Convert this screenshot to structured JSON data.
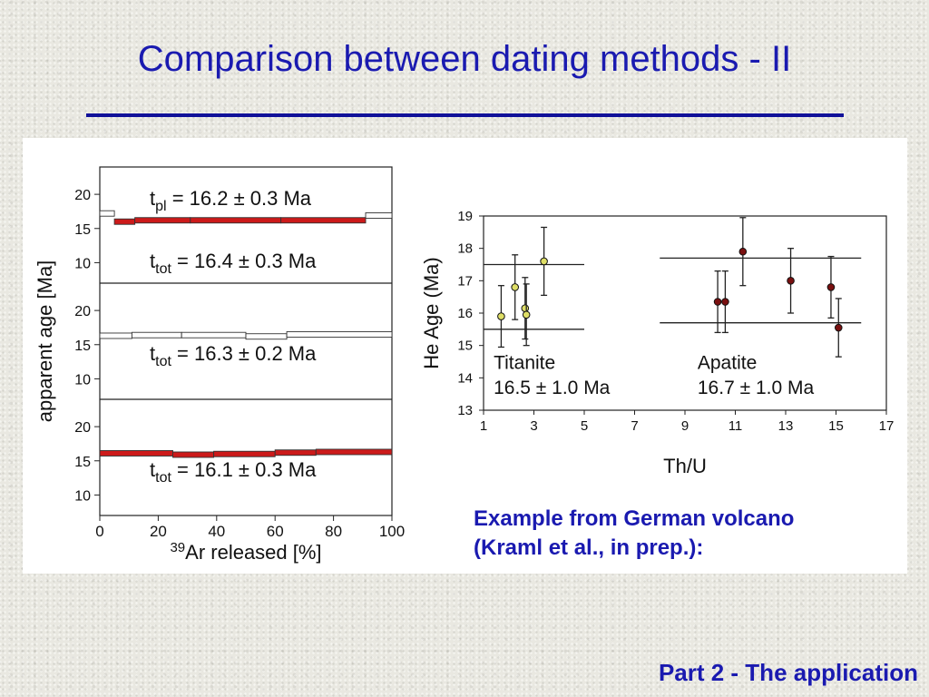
{
  "slide": {
    "title": "Comparison between dating methods - II",
    "caption_line1": "Example from German volcano",
    "caption_line2": "(Kraml et al., in prep.):",
    "footer": "Part 2 - The application"
  },
  "chart_data": [
    {
      "type": "bar",
      "title": "",
      "xlabel_sup": "39",
      "xlabel_main": "Ar released [%]",
      "ylabel": "apparent age [Ma]",
      "xlim": [
        0,
        100
      ],
      "x_ticks": [
        "0",
        "20",
        "40",
        "60",
        "80",
        "100"
      ],
      "panels": [
        {
          "ylim": [
            7,
            24
          ],
          "y_ticks": [
            "10",
            "15",
            "20"
          ],
          "annotations": [
            {
              "t": "t",
              "sub": "pl",
              "rest": " = 16.2 ± 0.3 Ma"
            },
            {
              "t": "t",
              "sub": "tot",
              "rest": " = 16.4 ± 0.3 Ma"
            }
          ],
          "steps": [
            {
              "x0": 0,
              "x1": 5,
              "age": 17.2,
              "filled": false
            },
            {
              "x0": 5,
              "x1": 12,
              "age": 16.0,
              "filled": true
            },
            {
              "x0": 12,
              "x1": 31,
              "age": 16.2,
              "filled": true
            },
            {
              "x0": 31,
              "x1": 62,
              "age": 16.2,
              "filled": true
            },
            {
              "x0": 62,
              "x1": 91,
              "age": 16.2,
              "filled": true
            },
            {
              "x0": 91,
              "x1": 100,
              "age": 16.9,
              "filled": false
            }
          ]
        },
        {
          "ylim": [
            7,
            24
          ],
          "y_ticks": [
            "10",
            "15",
            "20"
          ],
          "annotations": [
            {
              "t": "t",
              "sub": "tot",
              "rest": " = 16.3 ± 0.2 Ma"
            }
          ],
          "steps": [
            {
              "x0": 0,
              "x1": 11,
              "age": 16.3,
              "filled": false
            },
            {
              "x0": 11,
              "x1": 28,
              "age": 16.4,
              "filled": false
            },
            {
              "x0": 28,
              "x1": 50,
              "age": 16.4,
              "filled": false
            },
            {
              "x0": 50,
              "x1": 64,
              "age": 16.2,
              "filled": false
            },
            {
              "x0": 64,
              "x1": 100,
              "age": 16.5,
              "filled": false
            }
          ]
        },
        {
          "ylim": [
            7,
            24
          ],
          "y_ticks": [
            "10",
            "15",
            "20"
          ],
          "annotations": [
            {
              "t": "t",
              "sub": "tot",
              "rest": " = 16.1 ± 0.3 Ma"
            }
          ],
          "steps": [
            {
              "x0": 0,
              "x1": 25,
              "age": 16.1,
              "filled": true
            },
            {
              "x0": 25,
              "x1": 39,
              "age": 15.9,
              "filled": true
            },
            {
              "x0": 39,
              "x1": 60,
              "age": 16.0,
              "filled": true
            },
            {
              "x0": 60,
              "x1": 74,
              "age": 16.2,
              "filled": true
            },
            {
              "x0": 74,
              "x1": 100,
              "age": 16.3,
              "filled": true
            }
          ]
        }
      ]
    },
    {
      "type": "scatter",
      "title": "",
      "xlabel": "Th/U",
      "ylabel": "He Age (Ma)",
      "xlim": [
        1,
        17
      ],
      "ylim": [
        13,
        19
      ],
      "x_ticks": [
        1,
        3,
        5,
        7,
        9,
        11,
        13,
        15,
        17
      ],
      "y_ticks": [
        13,
        14,
        15,
        16,
        17,
        18,
        19
      ],
      "groups": [
        {
          "name_line1": "Titanite",
          "name_line2": "16.5 ± 1.0 Ma",
          "color": "#dede66",
          "band_x": [
            1,
            5
          ],
          "band_y": [
            15.5,
            17.5
          ],
          "points": [
            {
              "x": 1.7,
              "y": 15.9,
              "err": 0.95
            },
            {
              "x": 2.25,
              "y": 16.8,
              "err": 1.0
            },
            {
              "x": 2.65,
              "y": 16.15,
              "err": 0.95
            },
            {
              "x": 2.7,
              "y": 15.95,
              "err": 0.95
            },
            {
              "x": 3.4,
              "y": 17.6,
              "err": 1.05
            }
          ]
        },
        {
          "name_line1": "Apatite",
          "name_line2": "16.7 ± 1.0 Ma",
          "color": "#7a1010",
          "band_x": [
            8,
            16
          ],
          "band_y": [
            15.7,
            17.7
          ],
          "points": [
            {
              "x": 10.3,
              "y": 16.35,
              "err": 0.95
            },
            {
              "x": 10.6,
              "y": 16.35,
              "err": 0.95
            },
            {
              "x": 11.3,
              "y": 17.9,
              "err": 1.05
            },
            {
              "x": 13.2,
              "y": 17.0,
              "err": 1.0
            },
            {
              "x": 14.8,
              "y": 16.8,
              "err": 0.95
            },
            {
              "x": 15.1,
              "y": 15.55,
              "err": 0.9
            }
          ]
        }
      ]
    }
  ]
}
